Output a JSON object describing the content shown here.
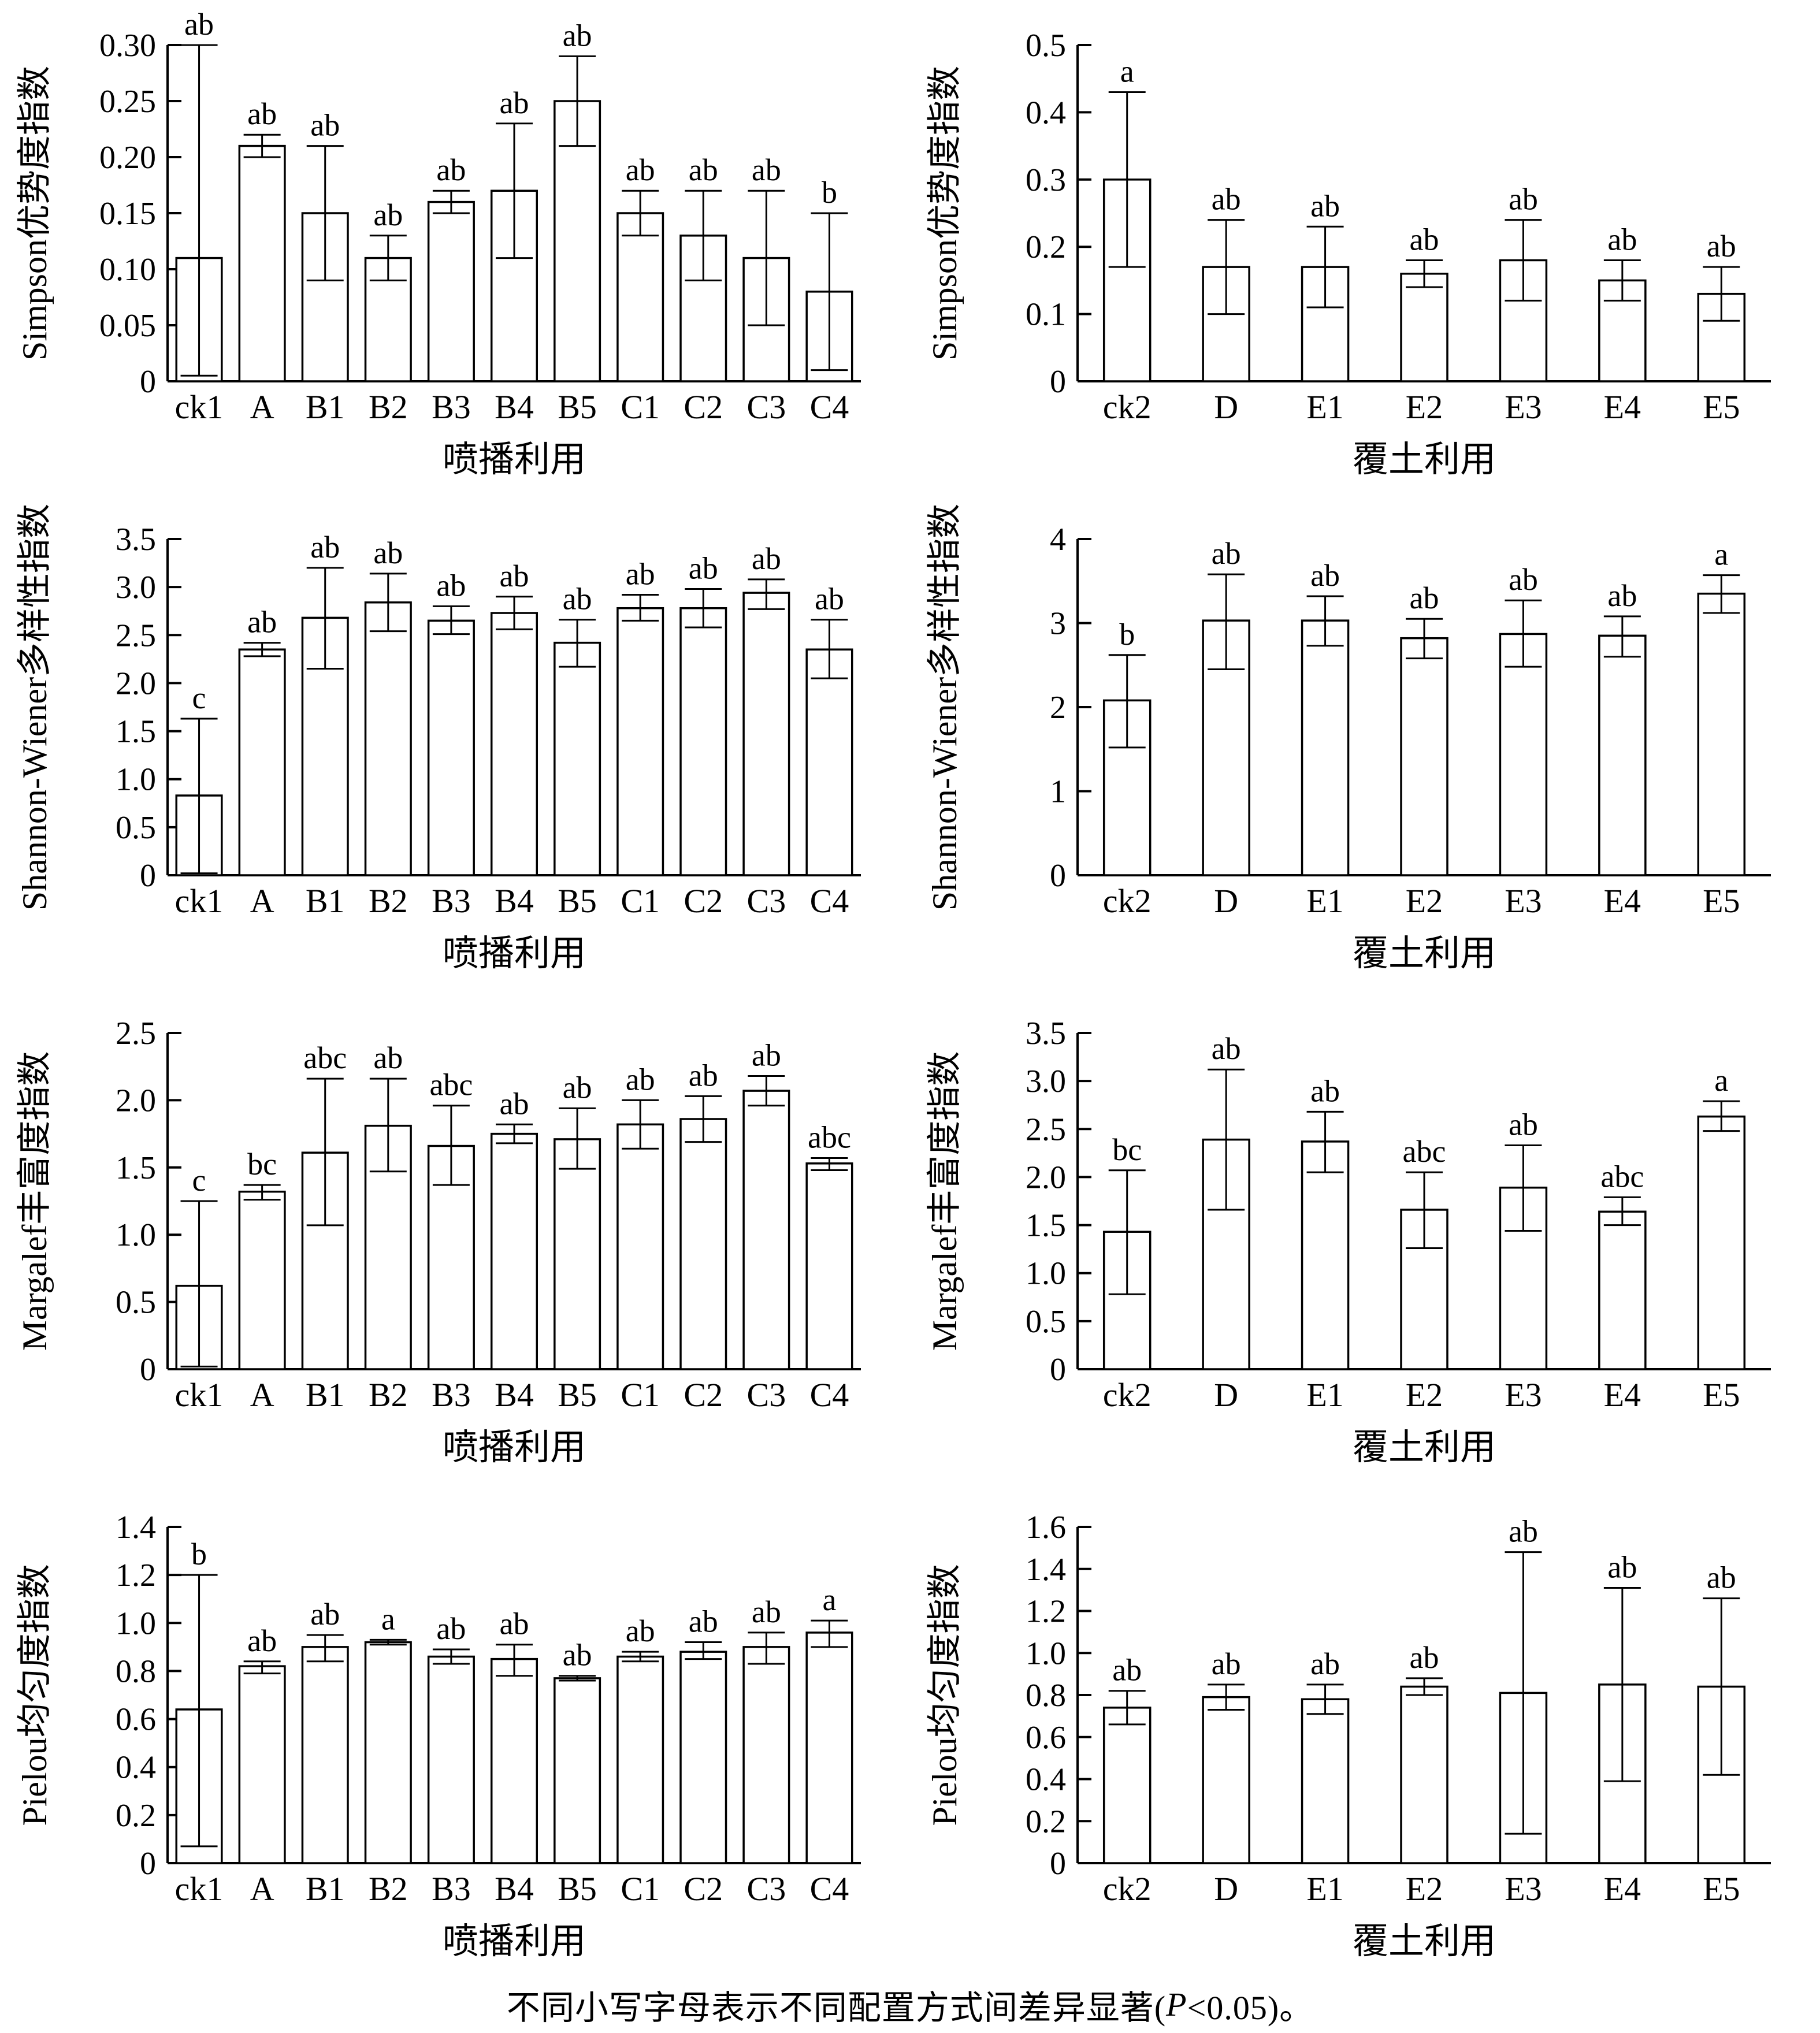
{
  "caption": {
    "prefix": "不同小写字母表示不同配置方式间差异显著(",
    "italic_var": "P",
    "suffix": "<0.05)。"
  },
  "chart_data": [
    {
      "name": "simpson-spray",
      "type": "bar",
      "ylabel": "Simpson优势度指数",
      "xlabel": "喷播利用",
      "categories": [
        "ck1",
        "A",
        "B1",
        "B2",
        "B3",
        "B4",
        "B5",
        "C1",
        "C2",
        "C3",
        "C4"
      ],
      "values": [
        0.11,
        0.21,
        0.15,
        0.11,
        0.16,
        0.17,
        0.25,
        0.15,
        0.13,
        0.11,
        0.08
      ],
      "err_low": [
        0.005,
        0.2,
        0.09,
        0.09,
        0.15,
        0.11,
        0.21,
        0.13,
        0.09,
        0.05,
        0.01
      ],
      "err_high": [
        0.3,
        0.22,
        0.21,
        0.13,
        0.17,
        0.23,
        0.29,
        0.17,
        0.17,
        0.17,
        0.15
      ],
      "letters": [
        "ab",
        "ab",
        "ab",
        "ab",
        "ab",
        "ab",
        "ab",
        "ab",
        "ab",
        "ab",
        "b"
      ],
      "ylim": [
        0,
        0.3
      ],
      "ytick_values": [
        0,
        0.05,
        0.1,
        0.15,
        0.2,
        0.25,
        0.3
      ],
      "ytick_labels": [
        "0",
        "0.05",
        "0.10",
        "0.15",
        "0.20",
        "0.25",
        "0.30"
      ],
      "grid": false,
      "legend": null
    },
    {
      "name": "simpson-cover",
      "type": "bar",
      "ylabel": "Simpson优势度指数",
      "xlabel": "覆土利用",
      "categories": [
        "ck2",
        "D",
        "E1",
        "E2",
        "E3",
        "E4",
        "E5"
      ],
      "values": [
        0.3,
        0.17,
        0.17,
        0.16,
        0.18,
        0.15,
        0.13
      ],
      "err_low": [
        0.17,
        0.1,
        0.11,
        0.14,
        0.12,
        0.12,
        0.09
      ],
      "err_high": [
        0.43,
        0.24,
        0.23,
        0.18,
        0.24,
        0.18,
        0.17
      ],
      "letters": [
        "a",
        "ab",
        "ab",
        "ab",
        "ab",
        "ab",
        "ab"
      ],
      "ylim": [
        0,
        0.5
      ],
      "ytick_values": [
        0,
        0.1,
        0.2,
        0.3,
        0.4,
        0.5
      ],
      "ytick_labels": [
        "0",
        "0.1",
        "0.2",
        "0.3",
        "0.4",
        "0.5"
      ],
      "grid": false,
      "legend": null
    },
    {
      "name": "shannon-spray",
      "type": "bar",
      "ylabel": "Shannon-Wiener多样性指数",
      "xlabel": "喷播利用",
      "categories": [
        "ck1",
        "A",
        "B1",
        "B2",
        "B3",
        "B4",
        "B5",
        "C1",
        "C2",
        "C3",
        "C4"
      ],
      "values": [
        0.83,
        2.35,
        2.68,
        2.84,
        2.65,
        2.73,
        2.42,
        2.78,
        2.78,
        2.94,
        2.35
      ],
      "err_low": [
        0.02,
        2.28,
        2.15,
        2.54,
        2.51,
        2.56,
        2.17,
        2.65,
        2.58,
        2.77,
        2.05
      ],
      "err_high": [
        1.63,
        2.42,
        3.2,
        3.14,
        2.8,
        2.9,
        2.66,
        2.92,
        2.98,
        3.08,
        2.66
      ],
      "letters": [
        "c",
        "ab",
        "ab",
        "ab",
        "ab",
        "ab",
        "ab",
        "ab",
        "ab",
        "ab",
        "ab"
      ],
      "ylim": [
        0,
        3.5
      ],
      "ytick_values": [
        0,
        0.5,
        1.0,
        1.5,
        2.0,
        2.5,
        3.0,
        3.5
      ],
      "ytick_labels": [
        "0",
        "0.5",
        "1.0",
        "1.5",
        "2.0",
        "2.5",
        "3.0",
        "3.5"
      ],
      "grid": false,
      "legend": null
    },
    {
      "name": "shannon-cover",
      "type": "bar",
      "ylabel": "Shannon-Wiener多样性指数",
      "xlabel": "覆土利用",
      "categories": [
        "ck2",
        "D",
        "E1",
        "E2",
        "E3",
        "E4",
        "E5"
      ],
      "values": [
        2.08,
        3.03,
        3.03,
        2.82,
        2.87,
        2.85,
        3.35
      ],
      "err_low": [
        1.52,
        2.45,
        2.73,
        2.58,
        2.48,
        2.6,
        3.12
      ],
      "err_high": [
        2.62,
        3.58,
        3.32,
        3.05,
        3.27,
        3.08,
        3.57
      ],
      "letters": [
        "b",
        "ab",
        "ab",
        "ab",
        "ab",
        "ab",
        "a"
      ],
      "ylim": [
        0,
        4
      ],
      "ytick_values": [
        0,
        1,
        2,
        3,
        4
      ],
      "ytick_labels": [
        "0",
        "1",
        "2",
        "3",
        "4"
      ],
      "grid": false,
      "legend": null
    },
    {
      "name": "margalef-spray",
      "type": "bar",
      "ylabel": "Margalef丰富度指数",
      "xlabel": "喷播利用",
      "categories": [
        "ck1",
        "A",
        "B1",
        "B2",
        "B3",
        "B4",
        "B5",
        "C1",
        "C2",
        "C3",
        "C4"
      ],
      "values": [
        0.62,
        1.32,
        1.61,
        1.81,
        1.66,
        1.75,
        1.71,
        1.82,
        1.86,
        2.07,
        1.53
      ],
      "err_low": [
        0.02,
        1.26,
        1.07,
        1.47,
        1.37,
        1.68,
        1.49,
        1.64,
        1.69,
        1.96,
        1.48
      ],
      "err_high": [
        1.25,
        1.37,
        2.16,
        2.16,
        1.96,
        1.82,
        1.94,
        2.0,
        2.03,
        2.18,
        1.57
      ],
      "letters": [
        "c",
        "bc",
        "abc",
        "ab",
        "abc",
        "ab",
        "ab",
        "ab",
        "ab",
        "ab",
        "abc"
      ],
      "ylim": [
        0,
        2.5
      ],
      "ytick_values": [
        0,
        0.5,
        1.0,
        1.5,
        2.0,
        2.5
      ],
      "ytick_labels": [
        "0",
        "0.5",
        "1.0",
        "1.5",
        "2.0",
        "2.5"
      ],
      "grid": false,
      "legend": null
    },
    {
      "name": "margalef-cover",
      "type": "bar",
      "ylabel": "Margalef丰富度指数",
      "xlabel": "覆土利用",
      "categories": [
        "ck2",
        "D",
        "E1",
        "E2",
        "E3",
        "E4",
        "E5"
      ],
      "values": [
        1.43,
        2.39,
        2.37,
        1.66,
        1.89,
        1.64,
        2.63
      ],
      "err_low": [
        0.78,
        1.66,
        2.05,
        1.26,
        1.44,
        1.5,
        2.48
      ],
      "err_high": [
        2.07,
        3.12,
        2.68,
        2.05,
        2.33,
        1.79,
        2.79
      ],
      "letters": [
        "bc",
        "ab",
        "ab",
        "abc",
        "ab",
        "abc",
        "a"
      ],
      "ylim": [
        0,
        3.5
      ],
      "ytick_values": [
        0,
        0.5,
        1.0,
        1.5,
        2.0,
        2.5,
        3.0,
        3.5
      ],
      "ytick_labels": [
        "0",
        "0.5",
        "1.0",
        "1.5",
        "2.0",
        "2.5",
        "3.0",
        "3.5"
      ],
      "grid": false,
      "legend": null
    },
    {
      "name": "pielou-spray",
      "type": "bar",
      "ylabel": "Pielou均匀度指数",
      "xlabel": "喷播利用",
      "categories": [
        "ck1",
        "A",
        "B1",
        "B2",
        "B3",
        "B4",
        "B5",
        "C1",
        "C2",
        "C3",
        "C4"
      ],
      "values": [
        0.64,
        0.82,
        0.9,
        0.92,
        0.86,
        0.85,
        0.77,
        0.86,
        0.88,
        0.9,
        0.96
      ],
      "err_low": [
        0.07,
        0.79,
        0.84,
        0.91,
        0.83,
        0.78,
        0.76,
        0.84,
        0.85,
        0.83,
        0.9
      ],
      "err_high": [
        1.2,
        0.84,
        0.95,
        0.93,
        0.89,
        0.91,
        0.78,
        0.88,
        0.92,
        0.96,
        1.01
      ],
      "letters": [
        "b",
        "ab",
        "ab",
        "a",
        "ab",
        "ab",
        "ab",
        "ab",
        "ab",
        "ab",
        "a"
      ],
      "ylim": [
        0,
        1.4
      ],
      "ytick_values": [
        0,
        0.2,
        0.4,
        0.6,
        0.8,
        1.0,
        1.2,
        1.4
      ],
      "ytick_labels": [
        "0",
        "0.2",
        "0.4",
        "0.6",
        "0.8",
        "1.0",
        "1.2",
        "1.4"
      ],
      "grid": false,
      "legend": null
    },
    {
      "name": "pielou-cover",
      "type": "bar",
      "ylabel": "Pielou均匀度指数",
      "xlabel": "覆土利用",
      "categories": [
        "ck2",
        "D",
        "E1",
        "E2",
        "E3",
        "E4",
        "E5"
      ],
      "values": [
        0.74,
        0.79,
        0.78,
        0.84,
        0.81,
        0.85,
        0.84
      ],
      "err_low": [
        0.66,
        0.73,
        0.71,
        0.8,
        0.14,
        0.39,
        0.42
      ],
      "err_high": [
        0.82,
        0.85,
        0.85,
        0.88,
        1.48,
        1.31,
        1.26
      ],
      "letters": [
        "ab",
        "ab",
        "ab",
        "ab",
        "ab",
        "ab",
        "ab"
      ],
      "ylim": [
        0,
        1.6
      ],
      "ytick_values": [
        0,
        0.2,
        0.4,
        0.6,
        0.8,
        1.0,
        1.2,
        1.4,
        1.6
      ],
      "ytick_labels": [
        "0",
        "0.2",
        "0.4",
        "0.6",
        "0.8",
        "1.0",
        "1.2",
        "1.4",
        "1.6"
      ],
      "grid": false,
      "legend": null
    }
  ]
}
